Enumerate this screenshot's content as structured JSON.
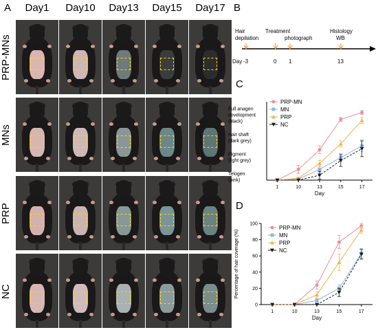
{
  "panel_labels": {
    "a": "A",
    "b": "B",
    "c": "C",
    "d": "D"
  },
  "photo_grid": {
    "columns": [
      "Day1",
      "Day10",
      "Day13",
      "Day15",
      "Day17"
    ],
    "rows": [
      "PRP-MNs",
      "MNs",
      "PRP",
      "NC"
    ],
    "patch_colors": [
      [
        "#d9b6b1",
        "#cfb6b6",
        "#6f7a7a",
        "#3a3d3d",
        "#2b2d2d"
      ],
      [
        "#d7b6b1",
        "#cfb9b8",
        "#8c9595",
        "#6d8686",
        "#5d7574"
      ],
      [
        "#d3b1ad",
        "#c9b4b3",
        "#889898",
        "#7b9495",
        "#6a8383"
      ],
      [
        "#d8b7b3",
        "#d0bbba",
        "#aab1b1",
        "#8b9a9a",
        "#7a8c8c"
      ]
    ],
    "highlight_color": "#ffd400"
  },
  "timeline": {
    "day_label": "Day",
    "ticks": [
      {
        "day": "-3",
        "event_lines": [
          "Hair",
          "depilation"
        ]
      },
      {
        "day": "0",
        "event_lines": [
          "Treatment"
        ]
      },
      {
        "day": "1",
        "event_lines": [
          "photograph"
        ]
      },
      {
        "day": "13",
        "event_lines": [
          "Histology",
          "WB"
        ]
      }
    ],
    "marker_color": "#f0a04b"
  },
  "chart_data": [
    {
      "type": "line",
      "panel": "C",
      "categories": [
        "1",
        "10",
        "13",
        "15",
        "17"
      ],
      "xlabel": "Day",
      "ylabel": "",
      "ylim": [
        0,
        4
      ],
      "y_tick_labels": [
        {
          "value": 0,
          "lines": [
            "Telogen",
            "(pink)"
          ]
        },
        {
          "value": 1,
          "lines": [
            "Pigment",
            "(light grey)"
          ]
        },
        {
          "value": 2,
          "lines": [
            "Hair shaft",
            "(dark grey)"
          ]
        },
        {
          "value": 3,
          "lines": [
            "Full anagen",
            "development",
            "(black)"
          ]
        }
      ],
      "legend": "top-left",
      "series": [
        {
          "name": "PRP-MN",
          "color": "#f08a96",
          "marker": "circle",
          "values": [
            0,
            0.55,
            1.55,
            3.1,
            3.45
          ],
          "errors": [
            0,
            0.2,
            0.2,
            0.1,
            0.1
          ]
        },
        {
          "name": "MN",
          "color": "#8db4e2",
          "marker": "square",
          "values": [
            0,
            0.05,
            0.55,
            1.15,
            1.75
          ],
          "errors": [
            0,
            0,
            0.15,
            0.2,
            0.3
          ]
        },
        {
          "name": "PRP",
          "color": "#f5b04a",
          "marker": "triangle",
          "values": [
            0,
            0.1,
            0.85,
            1.85,
            3.05
          ],
          "errors": [
            0,
            0.05,
            0.15,
            0.15,
            0.15
          ]
        },
        {
          "name": "NC",
          "color": "#1a1a1a",
          "marker": "triangle-down",
          "values": [
            0,
            0,
            0.25,
            1.0,
            1.6
          ],
          "errors": [
            0,
            0,
            0.2,
            0.3,
            0.4
          ]
        }
      ]
    },
    {
      "type": "line",
      "panel": "D",
      "categories": [
        "1",
        "10",
        "13",
        "15",
        "17"
      ],
      "xlabel": "Day",
      "ylabel": "Percentage of hair coverage (%)",
      "ylim": [
        0,
        100
      ],
      "y_ticks": [
        0,
        20,
        40,
        60,
        80,
        100
      ],
      "legend": "top-left",
      "series": [
        {
          "name": "PRP-MN",
          "color": "#f08a96",
          "marker": "circle",
          "values": [
            0,
            0,
            24,
            77,
            97
          ],
          "errors": [
            0,
            0,
            5,
            8,
            3
          ]
        },
        {
          "name": "MN",
          "color": "#8db4e2",
          "marker": "square",
          "values": [
            0,
            0,
            5,
            20,
            63
          ],
          "errors": [
            0,
            0,
            2,
            4,
            6
          ]
        },
        {
          "name": "PRP",
          "color": "#f5b04a",
          "marker": "triangle",
          "values": [
            0,
            0,
            12,
            52,
            92
          ],
          "errors": [
            0,
            0,
            4,
            10,
            4
          ]
        },
        {
          "name": "NC",
          "color": "#1a1a1a",
          "marker": "triangle-down",
          "values": [
            0,
            0,
            0,
            15,
            62
          ],
          "errors": [
            0,
            0,
            0,
            5,
            6
          ]
        }
      ]
    }
  ]
}
